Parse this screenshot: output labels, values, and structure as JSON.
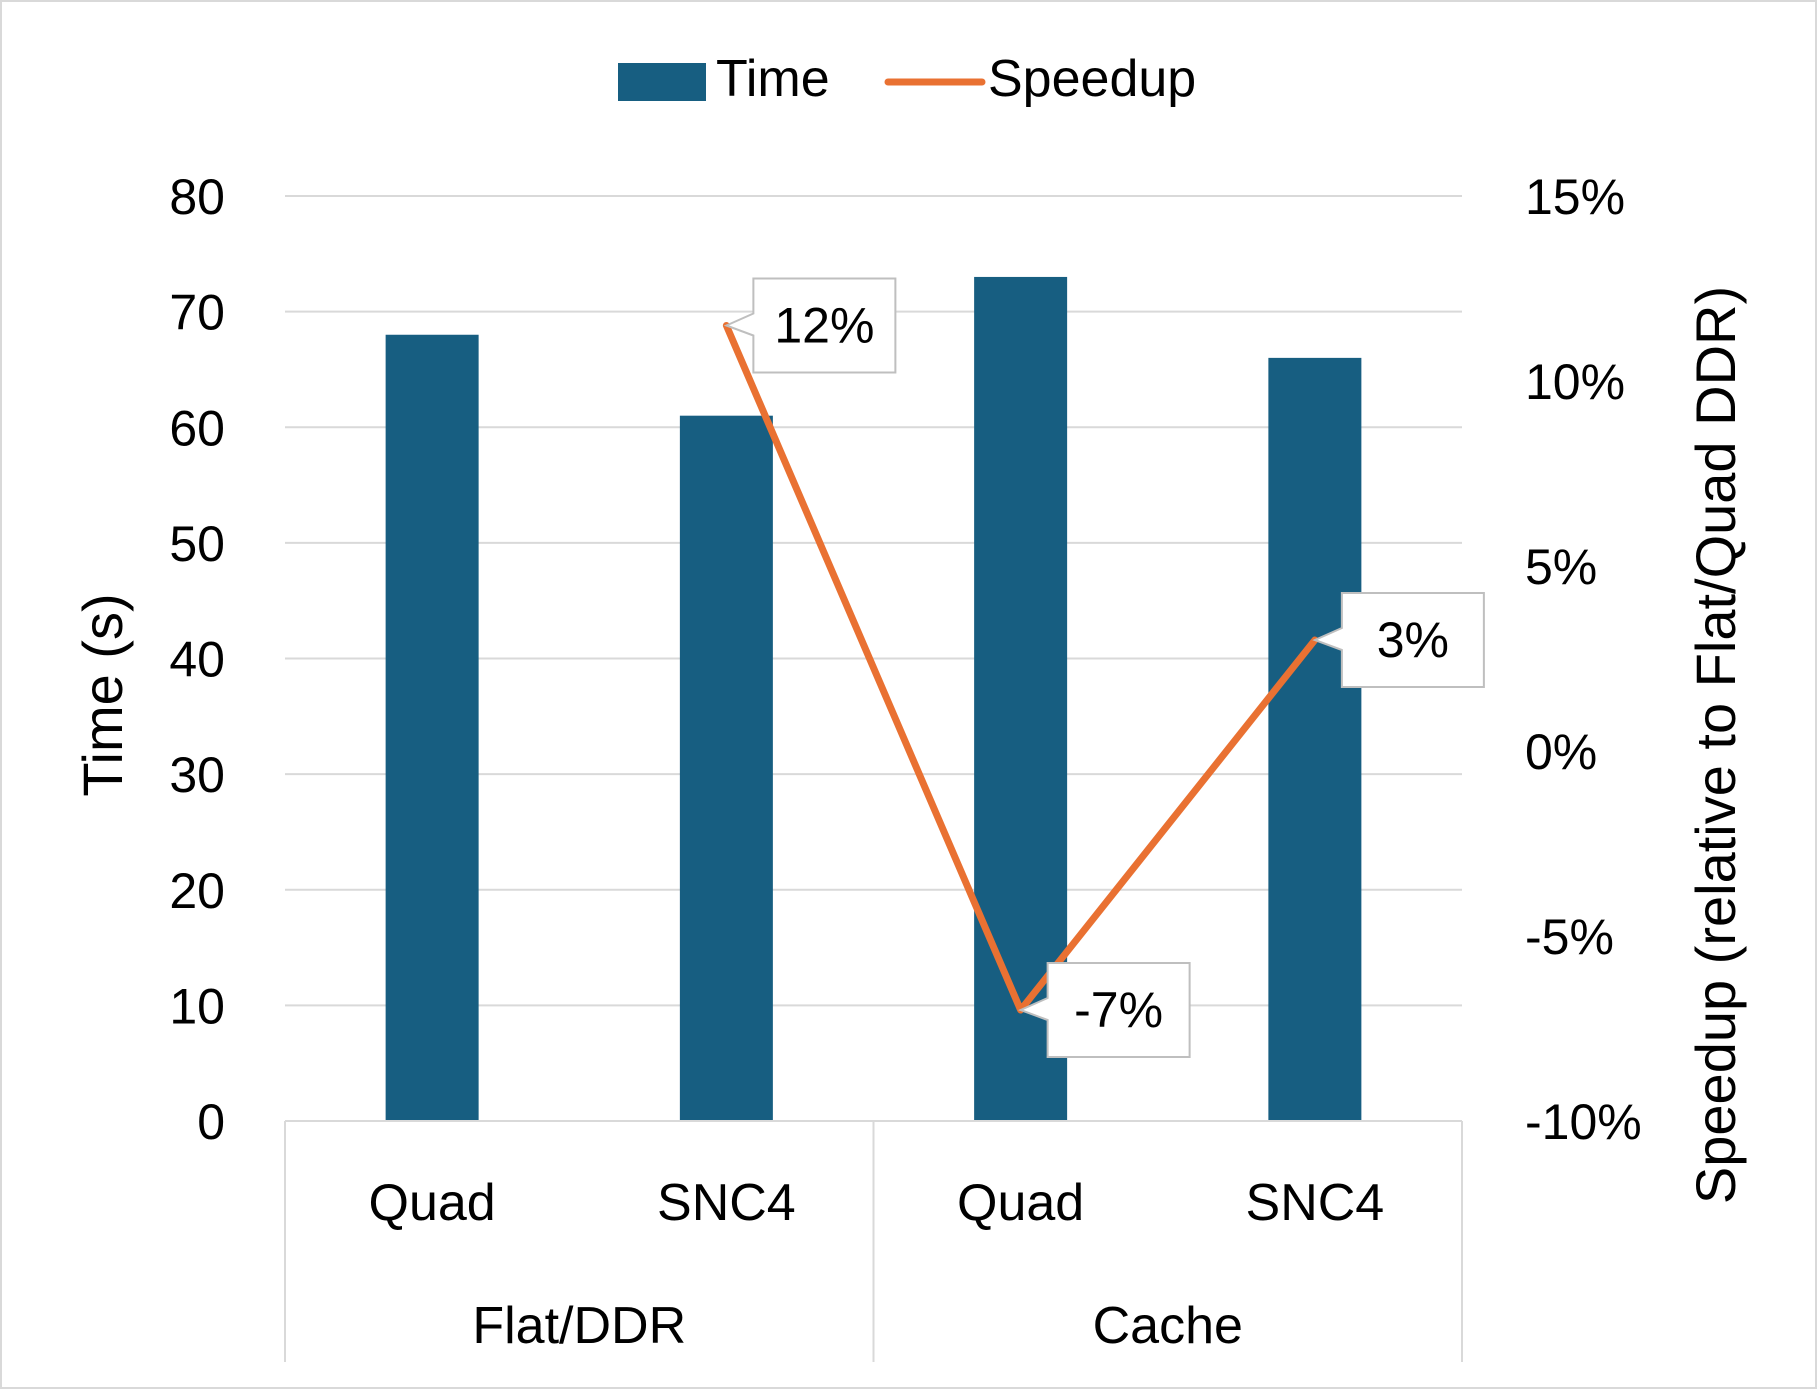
{
  "chart_data": {
    "type": "bar",
    "categories": [
      "Quad",
      "SNC4",
      "Quad",
      "SNC4"
    ],
    "groups": [
      {
        "label": "Flat/DDR",
        "span": [
          0,
          1
        ]
      },
      {
        "label": "Cache",
        "span": [
          2,
          3
        ]
      }
    ],
    "series": [
      {
        "name": "Time",
        "type": "bar",
        "axis": "left",
        "color": "#175e81",
        "values": [
          68,
          61,
          73,
          66
        ]
      },
      {
        "name": "Speedup",
        "type": "line",
        "axis": "right",
        "color": "#e97132",
        "values": [
          null,
          0.115,
          -0.07,
          0.03
        ],
        "data_labels": [
          null,
          "12%",
          "-7%",
          "3%"
        ]
      }
    ],
    "ylabel": "Time (s)",
    "y2label": "Speedup (relative to Flat/Quad DDR)",
    "ylim": [
      0,
      80
    ],
    "yticks": [
      0,
      10,
      20,
      30,
      40,
      50,
      60,
      70,
      80
    ],
    "y2lim": [
      -0.1,
      0.15
    ],
    "y2ticks": [
      -0.1,
      -0.05,
      0.0,
      0.05,
      0.1,
      0.15
    ],
    "y2tick_labels": [
      "-10%",
      "-5%",
      "0%",
      "5%",
      "10%",
      "15%"
    ],
    "legend": {
      "position": "top-center",
      "entries": [
        "Time",
        "Speedup"
      ]
    },
    "grid": true,
    "colors": {
      "gridline": "#d9d9d9",
      "axis": "#d9d9d9",
      "label_border": "#bfbfbf"
    }
  }
}
